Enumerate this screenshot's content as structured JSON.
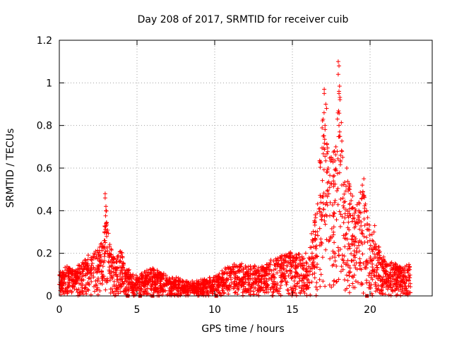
{
  "chart_data": {
    "type": "scatter",
    "title": "Day 208 of 2017, SRMTID for receiver cuib",
    "xlabel": "GPS time / hours",
    "ylabel": "SRMTID / TECUs",
    "xlim": [
      0,
      24
    ],
    "ylim": [
      0,
      1.2
    ],
    "x_ticks": [
      0,
      5,
      10,
      15,
      20
    ],
    "y_ticks": [
      0,
      0.2,
      0.4,
      0.6,
      0.8,
      1,
      1.2
    ],
    "x_tick_labels": [
      "0",
      "5",
      "10",
      "15",
      "20"
    ],
    "y_tick_labels": [
      "0",
      "0.2",
      "0.4",
      "0.6",
      "0.8",
      "1",
      "1.2"
    ],
    "grid": true,
    "marker": "+",
    "series_color": "#ff0000",
    "gap_marker_color": "#cc0000",
    "data_gap_times": [
      4.4,
      5.2,
      6.0,
      10.1,
      19.8
    ],
    "envelope": [
      {
        "t": 0.0,
        "y": 0.1
      },
      {
        "t": 0.5,
        "y": 0.14
      },
      {
        "t": 1.0,
        "y": 0.12
      },
      {
        "t": 1.5,
        "y": 0.16
      },
      {
        "t": 2.0,
        "y": 0.2
      },
      {
        "t": 2.5,
        "y": 0.22
      },
      {
        "t": 2.9,
        "y": 0.3
      },
      {
        "t": 3.0,
        "y": 0.45
      },
      {
        "t": 3.2,
        "y": 0.26
      },
      {
        "t": 3.6,
        "y": 0.16
      },
      {
        "t": 4.0,
        "y": 0.22
      },
      {
        "t": 4.4,
        "y": 0.12
      },
      {
        "t": 5.0,
        "y": 0.1
      },
      {
        "t": 6.0,
        "y": 0.13
      },
      {
        "t": 7.0,
        "y": 0.09
      },
      {
        "t": 8.0,
        "y": 0.07
      },
      {
        "t": 9.0,
        "y": 0.07
      },
      {
        "t": 10.0,
        "y": 0.09
      },
      {
        "t": 11.0,
        "y": 0.14
      },
      {
        "t": 12.0,
        "y": 0.15
      },
      {
        "t": 13.0,
        "y": 0.14
      },
      {
        "t": 14.0,
        "y": 0.18
      },
      {
        "t": 15.0,
        "y": 0.21
      },
      {
        "t": 16.0,
        "y": 0.2
      },
      {
        "t": 16.5,
        "y": 0.4
      },
      {
        "t": 17.0,
        "y": 0.9
      },
      {
        "t": 17.4,
        "y": 0.65
      },
      {
        "t": 17.8,
        "y": 0.7
      },
      {
        "t": 18.0,
        "y": 1.08
      },
      {
        "t": 18.3,
        "y": 0.6
      },
      {
        "t": 19.0,
        "y": 0.45
      },
      {
        "t": 19.6,
        "y": 0.5
      },
      {
        "t": 20.0,
        "y": 0.3
      },
      {
        "t": 20.4,
        "y": 0.25
      },
      {
        "t": 21.0,
        "y": 0.16
      },
      {
        "t": 21.5,
        "y": 0.16
      },
      {
        "t": 22.0,
        "y": 0.13
      },
      {
        "t": 22.6,
        "y": 0.15
      }
    ],
    "highlight_points": [
      {
        "x": 2.95,
        "y": 0.48
      },
      {
        "x": 2.95,
        "y": 0.46
      },
      {
        "x": 3.0,
        "y": 0.42
      },
      {
        "x": 3.0,
        "y": 0.4
      },
      {
        "x": 17.05,
        "y": 0.97
      },
      {
        "x": 17.05,
        "y": 0.95
      },
      {
        "x": 17.15,
        "y": 0.9
      },
      {
        "x": 17.2,
        "y": 0.88
      },
      {
        "x": 17.1,
        "y": 0.8
      },
      {
        "x": 17.95,
        "y": 1.1
      },
      {
        "x": 18.0,
        "y": 1.08
      },
      {
        "x": 17.95,
        "y": 1.04
      },
      {
        "x": 18.0,
        "y": 0.96
      },
      {
        "x": 18.0,
        "y": 0.95
      },
      {
        "x": 17.9,
        "y": 0.83
      },
      {
        "x": 18.0,
        "y": 0.8
      },
      {
        "x": 17.8,
        "y": 0.7
      },
      {
        "x": 17.7,
        "y": 0.68
      },
      {
        "x": 18.1,
        "y": 0.66
      },
      {
        "x": 18.1,
        "y": 0.63
      },
      {
        "x": 17.5,
        "y": 0.65
      },
      {
        "x": 17.3,
        "y": 0.6
      },
      {
        "x": 19.6,
        "y": 0.55
      },
      {
        "x": 19.5,
        "y": 0.52
      },
      {
        "x": 18.5,
        "y": 0.6
      },
      {
        "x": 20.3,
        "y": 0.33
      },
      {
        "x": 20.25,
        "y": 0.3
      }
    ]
  }
}
